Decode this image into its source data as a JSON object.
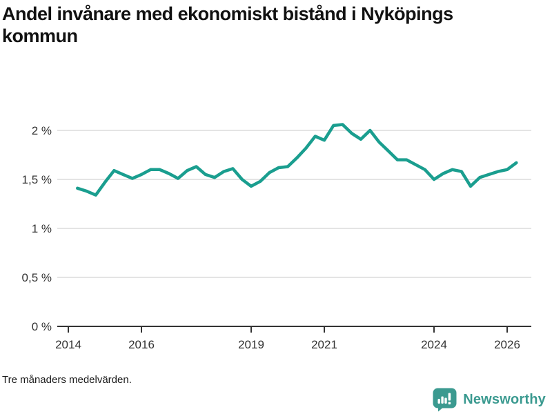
{
  "header": {
    "title": "Andel invånare med ekonomiskt bistånd i Nyköpings kommun"
  },
  "footer": {
    "note": "Tre månaders medelvärden.",
    "brand_name": "Newsworthy",
    "brand_icon": "bar-chart-speech-bubble-icon"
  },
  "colors": {
    "line": "#1a9e8f",
    "grid": "#e4e4e4",
    "axis": "#333333",
    "tick_text": "#333333",
    "brand_teal": "#3b9a90"
  },
  "chart_data": {
    "type": "line",
    "title": "Andel invånare med ekonomiskt bistånd i Nyköpings kommun",
    "subtitle_note": "Tre månaders medelvärden.",
    "xlabel": "",
    "ylabel": "",
    "ylim": [
      0,
      2.2
    ],
    "xlim": [
      2013.7,
      2026.65
    ],
    "grid": "horizontal",
    "legend": "none",
    "unit": "%",
    "decimal_separator": ",",
    "yticks": [
      {
        "value": 0,
        "label": "0 %"
      },
      {
        "value": 0.5,
        "label": "0,5 %"
      },
      {
        "value": 1,
        "label": "1 %"
      },
      {
        "value": 1.5,
        "label": "1,5 %"
      },
      {
        "value": 2,
        "label": "2 %"
      }
    ],
    "xticks": [
      {
        "value": 2014,
        "label": "2014"
      },
      {
        "value": 2016,
        "label": "2016"
      },
      {
        "value": 2019,
        "label": "2019"
      },
      {
        "value": 2021,
        "label": "2021"
      },
      {
        "value": 2024,
        "label": "2024"
      },
      {
        "value": 2026,
        "label": "2026"
      }
    ],
    "x": [
      2014.25,
      2014.5,
      2014.75,
      2015.0,
      2015.25,
      2015.5,
      2015.75,
      2016.0,
      2016.25,
      2016.5,
      2016.75,
      2017.0,
      2017.25,
      2017.5,
      2017.75,
      2018.0,
      2018.25,
      2018.5,
      2018.75,
      2019.0,
      2019.25,
      2019.5,
      2019.75,
      2020.0,
      2020.25,
      2020.5,
      2020.75,
      2021.0,
      2021.25,
      2021.5,
      2021.75,
      2022.0,
      2022.25,
      2022.5,
      2022.75,
      2023.0,
      2023.25,
      2023.5,
      2023.75,
      2024.0,
      2024.25,
      2024.5,
      2024.75,
      2025.0,
      2025.25,
      2025.5,
      2025.75,
      2026.0,
      2026.25
    ],
    "values": [
      1.41,
      1.38,
      1.34,
      1.47,
      1.59,
      1.55,
      1.51,
      1.55,
      1.6,
      1.6,
      1.56,
      1.51,
      1.59,
      1.63,
      1.55,
      1.52,
      1.58,
      1.61,
      1.5,
      1.43,
      1.48,
      1.57,
      1.62,
      1.63,
      1.72,
      1.82,
      1.94,
      1.9,
      2.05,
      2.06,
      1.97,
      1.91,
      2.0,
      1.88,
      1.79,
      1.7,
      1.7,
      1.65,
      1.6,
      1.5,
      1.56,
      1.6,
      1.58,
      1.43,
      1.52,
      1.55,
      1.58,
      1.6,
      1.67
    ]
  }
}
